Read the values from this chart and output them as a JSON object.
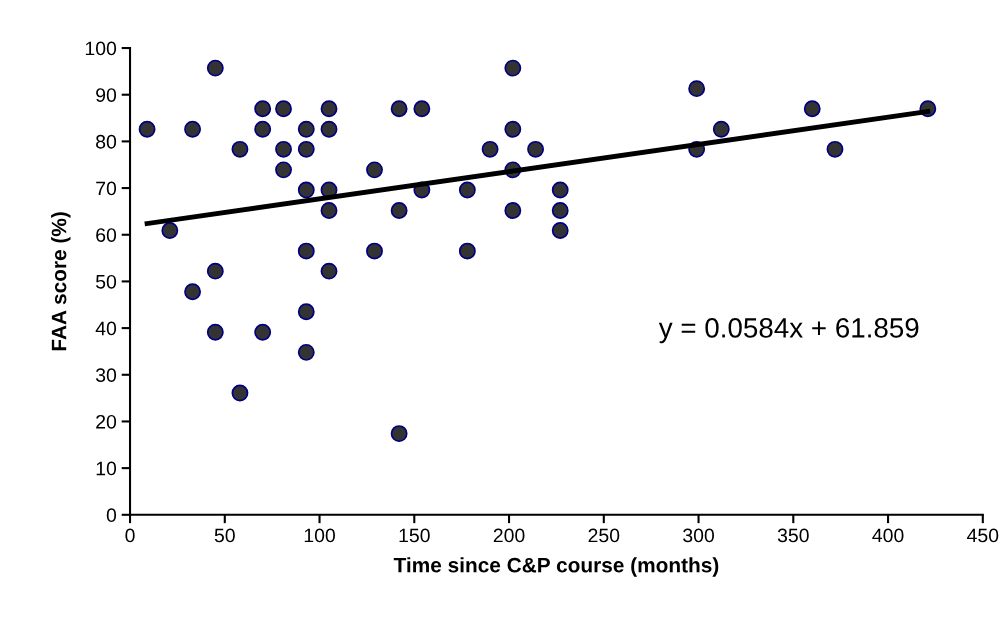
{
  "chart_data": {
    "type": "scatter",
    "xlabel": "Time since C&P course (months)",
    "ylabel": "FAA score (%)",
    "annotations": [
      "y = 0.0584x + 61.859"
    ],
    "series": [
      {
        "color": "#333333",
        "marker": "circle",
        "x": [
          45,
          70,
          81,
          105,
          142,
          154,
          9,
          33,
          70,
          93,
          105,
          58,
          81,
          93,
          81,
          129,
          93,
          105,
          154,
          105,
          142,
          21,
          93,
          129,
          45,
          105,
          33,
          93,
          45,
          70,
          93,
          58,
          142,
          202,
          299,
          360,
          421,
          202,
          312,
          190,
          214,
          299,
          372,
          202,
          178,
          227,
          202,
          227,
          227,
          178
        ],
        "values": [
          95.7,
          87.0,
          87.0,
          87.0,
          87.0,
          87.0,
          82.6,
          82.6,
          82.6,
          82.6,
          82.6,
          78.3,
          78.3,
          78.3,
          73.9,
          73.9,
          69.6,
          69.6,
          69.6,
          65.2,
          65.2,
          60.9,
          56.5,
          56.5,
          52.2,
          52.2,
          47.8,
          43.5,
          39.1,
          39.1,
          34.8,
          26.1,
          17.4,
          95.7,
          91.3,
          87.0,
          87.0,
          82.6,
          82.6,
          78.3,
          78.3,
          78.3,
          78.3,
          73.9,
          69.6,
          69.6,
          65.2,
          65.2,
          60.9,
          56.5
        ]
      },
      {
        "type": "line",
        "color": "#000000",
        "marker": "none",
        "line_style": "solid",
        "x": [
          9,
          421
        ],
        "values": [
          62.4,
          86.4
        ]
      }
    ],
    "xlim": [
      0,
      450
    ],
    "xticks": [
      0,
      50,
      100,
      150,
      200,
      250,
      300,
      350,
      400,
      450
    ],
    "ylim": [
      0,
      100
    ],
    "yticks": [
      0,
      10,
      20,
      30,
      40,
      50,
      60,
      70,
      80,
      90,
      100
    ],
    "grid": false,
    "legend": false
  }
}
